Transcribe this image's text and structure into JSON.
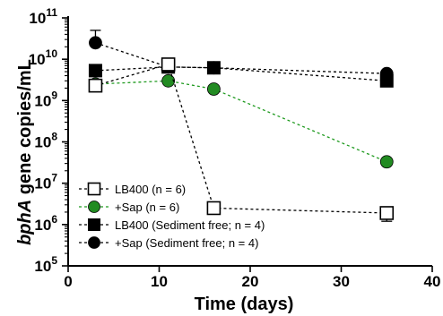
{
  "chart_data": {
    "type": "line",
    "xlabel": "Time (days)",
    "ylabel_italic": "bphA",
    "ylabel_rest": " gene copies/mL",
    "xlim": [
      0,
      40
    ],
    "ylim": [
      100000,
      100000000000
    ],
    "y_scale": "log",
    "x_ticks": [
      0,
      10,
      20,
      30,
      40
    ],
    "y_tick_exponents": [
      5,
      6,
      7,
      8,
      9,
      10,
      11
    ],
    "y_tick_base": "10",
    "legend_position": "bottom-left",
    "series": [
      {
        "name": "LB400 (n = 6)",
        "marker": "square-open",
        "line_color": "#000000",
        "marker_color": "#ffffff",
        "x": [
          3,
          11,
          16,
          35
        ],
        "y": [
          2300000000,
          7500000000,
          2500000,
          1900000
        ],
        "error_up": [
          null,
          null,
          null,
          2500000
        ],
        "error_down": [
          null,
          null,
          null,
          1200000
        ]
      },
      {
        "name": "+Sap (n = 6)",
        "marker": "circle-filled",
        "line_color": "#1f9a1f",
        "marker_color": "#228b22",
        "x": [
          3,
          11,
          16,
          35
        ],
        "y": [
          2500000000,
          3000000000,
          1900000000,
          33000000
        ],
        "error_up": [
          null,
          null,
          null,
          null
        ],
        "error_down": [
          null,
          null,
          null,
          null
        ]
      },
      {
        "name": "LB400 (Sediment free; n = 4)",
        "marker": "square-filled",
        "line_color": "#000000",
        "marker_color": "#000000",
        "x": [
          3,
          11,
          16,
          35
        ],
        "y": [
          5300000000,
          6500000000,
          6200000000,
          3000000000
        ],
        "error_up": [
          null,
          null,
          null,
          null
        ],
        "error_down": [
          null,
          null,
          null,
          null
        ]
      },
      {
        "name": "+Sap (Sediment free; n = 4)",
        "marker": "circle-filled",
        "line_color": "#000000",
        "marker_color": "#000000",
        "x": [
          3,
          11,
          16,
          35
        ],
        "y": [
          25000000000,
          6500000000,
          6200000000,
          4500000000
        ],
        "error_up": [
          50000000000,
          null,
          null,
          null
        ],
        "error_down": [
          null,
          null,
          null,
          null
        ]
      }
    ]
  }
}
